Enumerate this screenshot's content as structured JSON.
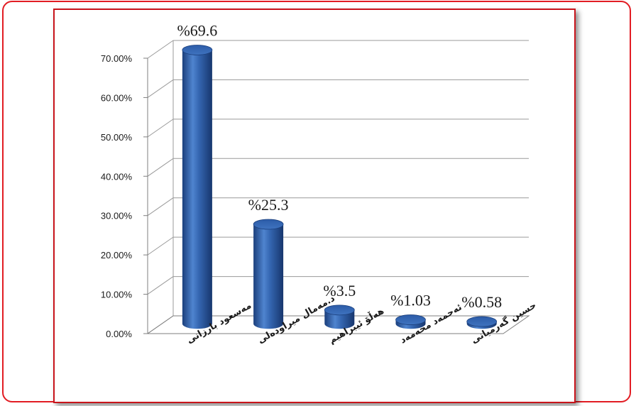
{
  "chart_data": {
    "type": "bar",
    "style": "3d-cylinder",
    "categories": [
      "مەسعود بارزانی",
      "د.مەمال میراودەلی",
      "هەڵۆ ئیبراهیم",
      "ئەحمەد محەمەد",
      "حسین گەرمیانی"
    ],
    "values": [
      69.6,
      25.3,
      3.5,
      1.03,
      0.58
    ],
    "data_labels": [
      "%69.6",
      "%25.3",
      "%3.5",
      "%1.03",
      "%0.58"
    ],
    "yticks": [
      "0.00%",
      "10.00%",
      "20.00%",
      "30.00%",
      "40.00%",
      "50.00%",
      "60.00%",
      "70.00%"
    ],
    "ylim": [
      0,
      70
    ],
    "grid": true,
    "legend": "none",
    "bar_color": "#2e5fae"
  }
}
